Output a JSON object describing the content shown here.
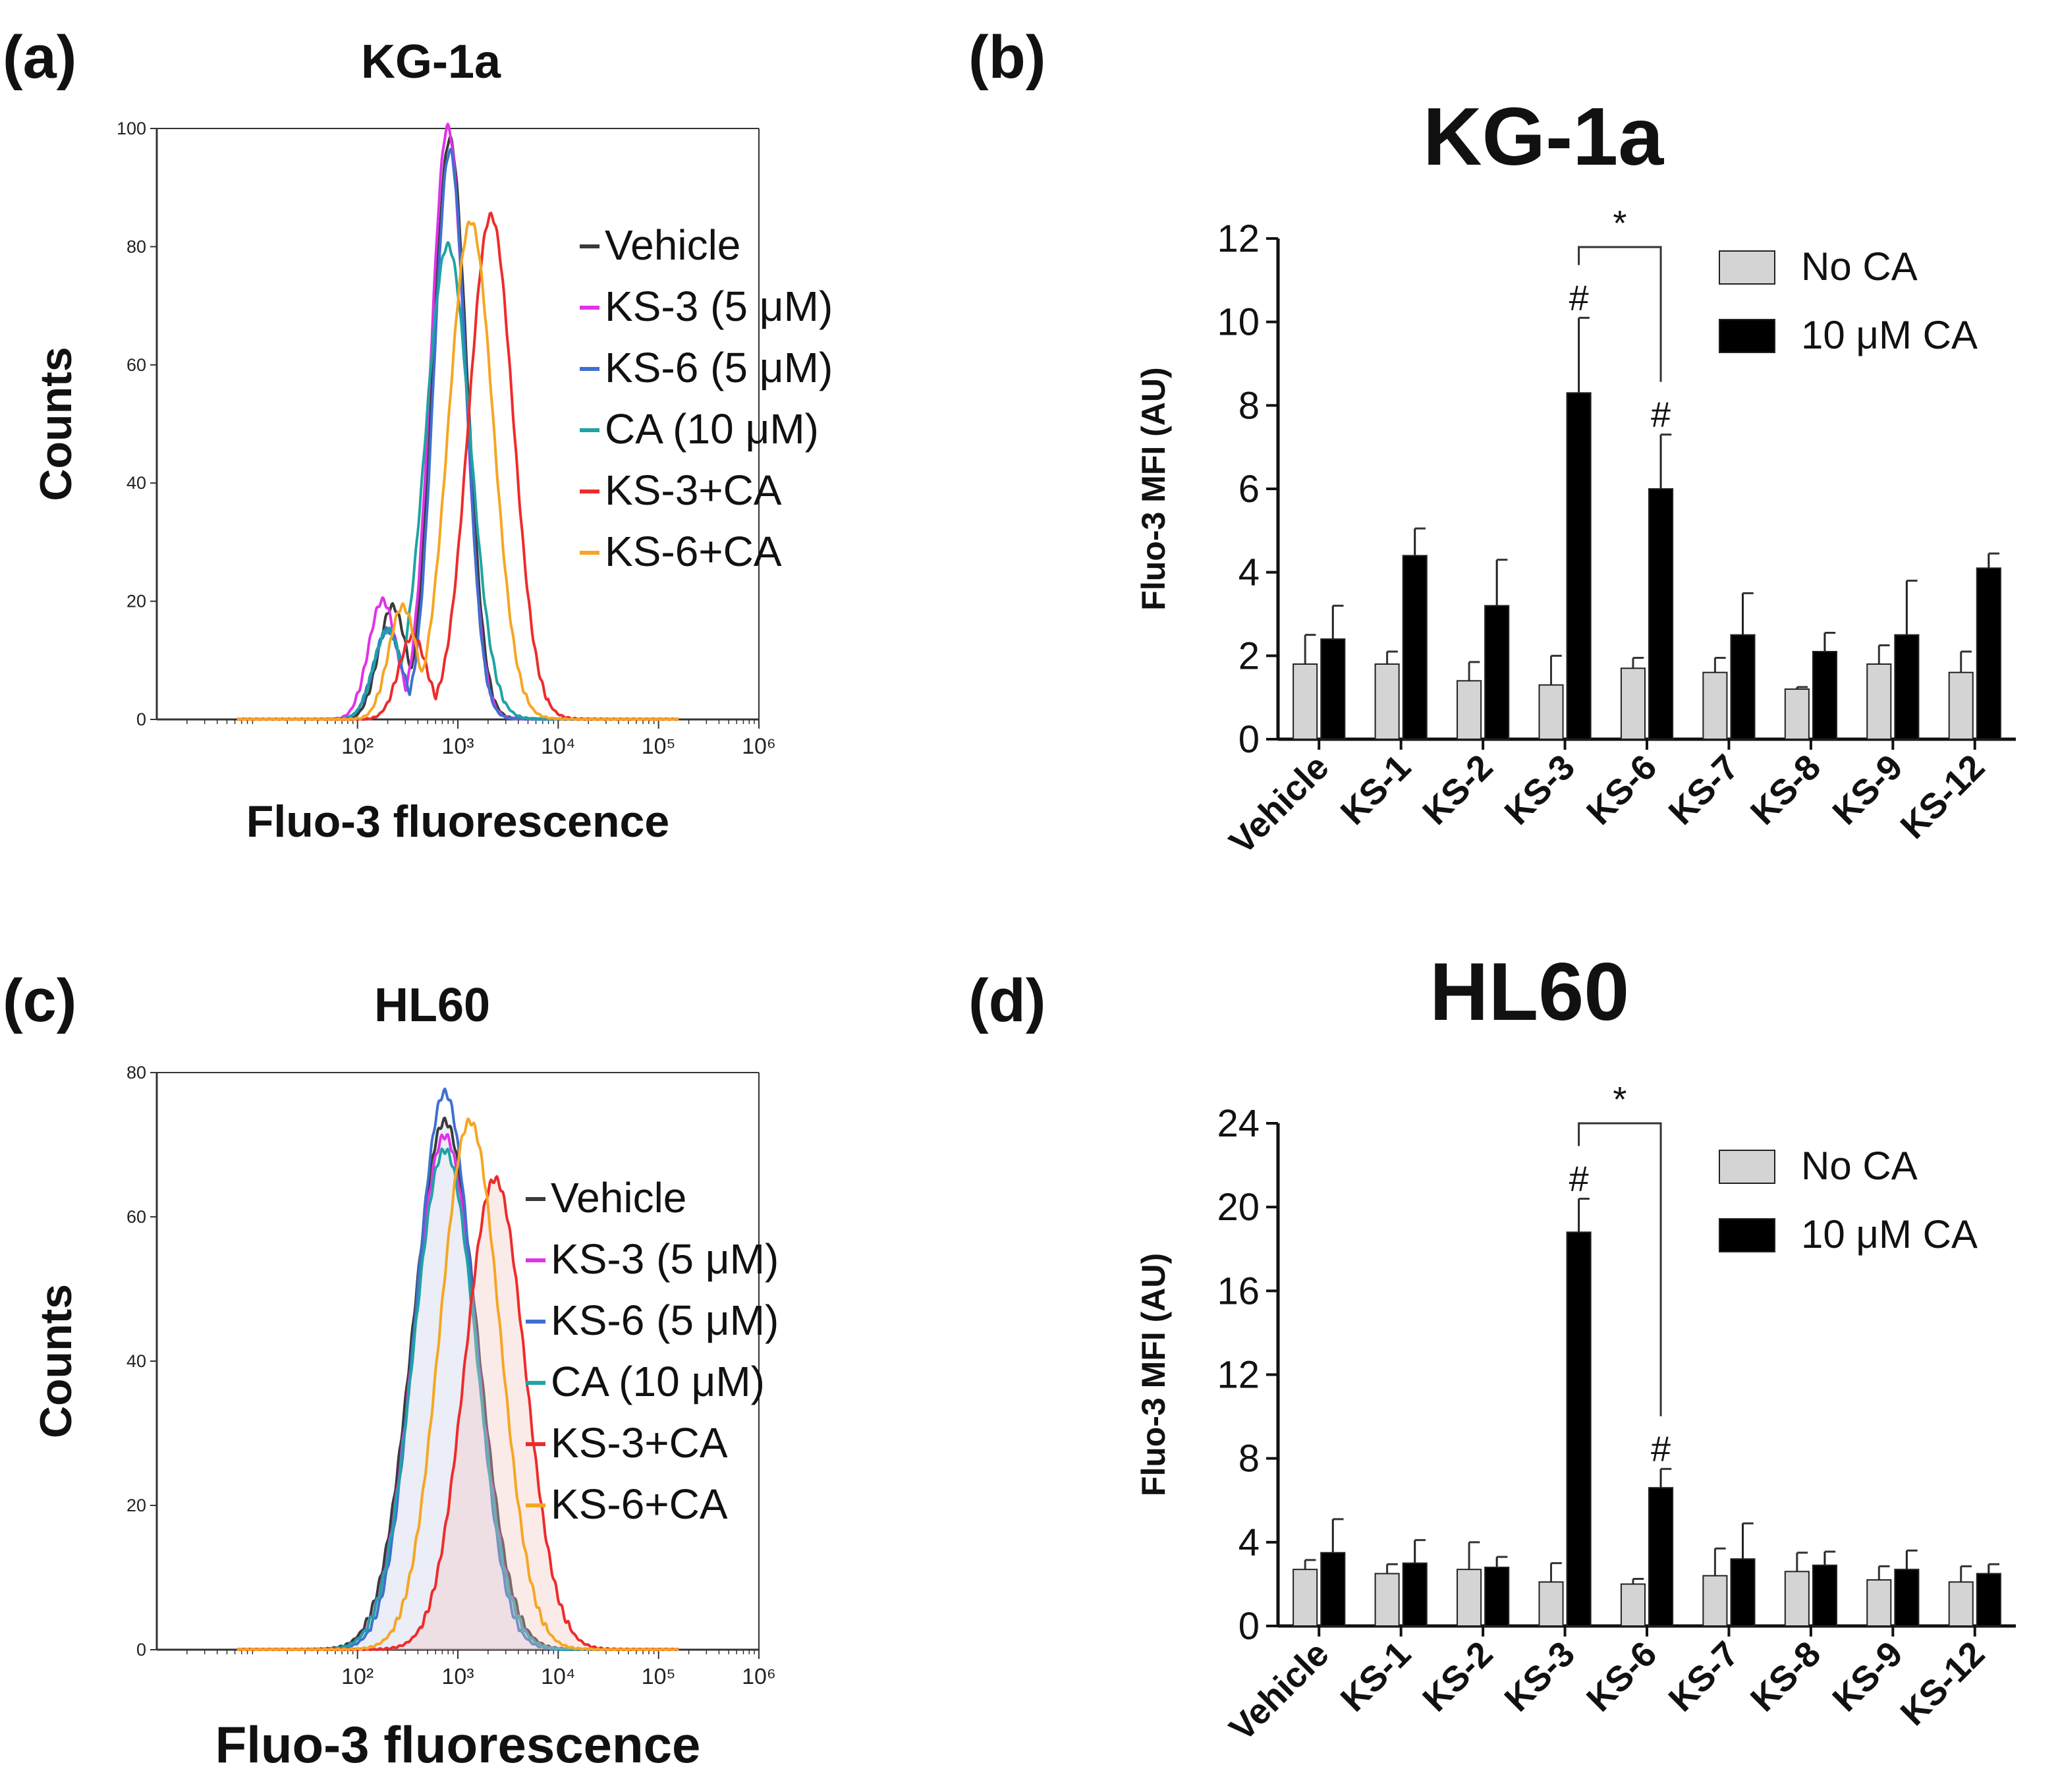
{
  "figure": {
    "panels": [
      {
        "letter": "(a)",
        "title": "KG-1a"
      },
      {
        "letter": "(b)",
        "title": "KG-1a"
      },
      {
        "letter": "(c)",
        "title": "HL60"
      },
      {
        "letter": "(d)",
        "title": "HL60"
      }
    ]
  },
  "chart_data": [
    {
      "panel": "(a)",
      "type": "line",
      "title": "KG-1a",
      "xlabel": "Fluo-3 fluorescence",
      "ylabel": "Counts",
      "xscale": "log",
      "xlim": [
        1,
        1000000
      ],
      "ylim": [
        0,
        100
      ],
      "xticks": [
        "10²",
        "10³",
        "10⁴",
        "10⁵",
        "10⁶"
      ],
      "yticks": [
        "0",
        "20",
        "40",
        "60",
        "80",
        "100"
      ],
      "legend_position": "right",
      "series": [
        {
          "name": "Vehicle",
          "color": "#3a3a3a",
          "peak_log10": 2.92,
          "peak": 98,
          "width": 0.17,
          "shoulder": 19,
          "shoulder_log10": 2.35
        },
        {
          "name": "KS-3 (5 μM)",
          "color": "#e032e8",
          "peak_log10": 2.9,
          "peak": 100,
          "width": 0.17,
          "shoulder": 20,
          "shoulder_log10": 2.25
        },
        {
          "name": "KS-6 (5 μM)",
          "color": "#3f6fd0",
          "peak_log10": 2.92,
          "peak": 96,
          "width": 0.16,
          "shoulder": 15,
          "shoulder_log10": 2.3
        },
        {
          "name": "CA (10 μM)",
          "color": "#1fa3a3",
          "peak_log10": 2.9,
          "peak": 80,
          "width": 0.22,
          "shoulder": 15,
          "shoulder_log10": 2.3
        },
        {
          "name": "KS-3+CA",
          "color": "#ee2b2b",
          "peak_log10": 3.33,
          "peak": 85,
          "width": 0.22,
          "shoulder": 14,
          "shoulder_log10": 2.55
        },
        {
          "name": "KS-6+CA",
          "color": "#f5a623",
          "peak_log10": 3.13,
          "peak": 84,
          "width": 0.22,
          "shoulder": 19,
          "shoulder_log10": 2.45
        }
      ]
    },
    {
      "panel": "(b)",
      "type": "bar",
      "title": "KG-1a",
      "ylabel": "Fluo-3 MFI (AU)",
      "ylim": [
        0,
        12
      ],
      "yticks": [
        0,
        2,
        4,
        6,
        8,
        10,
        12
      ],
      "categories": [
        "Vehicle",
        "KS-1",
        "KS-2",
        "KS-3",
        "KS-6",
        "KS-7",
        "KS-8",
        "KS-9",
        "KS-12"
      ],
      "series": [
        {
          "name": "No CA",
          "color": "#d4d4d4",
          "values": [
            1.8,
            1.8,
            1.4,
            1.3,
            1.7,
            1.6,
            1.2,
            1.8,
            1.6
          ],
          "errors": [
            0.7,
            0.3,
            0.45,
            0.7,
            0.25,
            0.35,
            0.05,
            0.45,
            0.5
          ]
        },
        {
          "name": "10 μM CA",
          "color": "#000000",
          "values": [
            2.4,
            4.4,
            3.2,
            8.3,
            6.0,
            2.5,
            2.1,
            2.5,
            4.1
          ],
          "errors": [
            0.8,
            0.65,
            1.1,
            1.8,
            1.3,
            1.0,
            0.45,
            1.3,
            0.35
          ]
        }
      ],
      "annotations": [
        {
          "category": "KS-3",
          "text": "#"
        },
        {
          "category": "KS-6",
          "text": "#"
        },
        {
          "between": [
            "KS-3",
            "KS-6"
          ],
          "text": "*"
        }
      ],
      "legend_position": "top-right"
    },
    {
      "panel": "(c)",
      "type": "line",
      "title": "HL60",
      "xlabel": "Fluo-3 fluorescence",
      "ylabel": "Counts",
      "xscale": "log",
      "xlim": [
        1,
        1000000
      ],
      "ylim": [
        0,
        80
      ],
      "xticks": [
        "10²",
        "10³",
        "10⁴",
        "10⁵",
        "10⁶"
      ],
      "yticks": [
        "0",
        "20",
        "40",
        "60",
        "80"
      ],
      "legend_position": "right",
      "series": [
        {
          "name": "Vehicle",
          "color": "#3a3a3a",
          "peak_log10": 2.87,
          "peak": 73,
          "width": 0.32,
          "shoulder": 0,
          "shoulder_log10": 2.5
        },
        {
          "name": "KS-3 (5 μM)",
          "color": "#e032e8",
          "peak_log10": 2.87,
          "peak": 71,
          "width": 0.31,
          "shoulder": 0,
          "shoulder_log10": 2.5
        },
        {
          "name": "KS-6 (5 μM)",
          "color": "#3f6fd0",
          "peak_log10": 2.87,
          "peak": 77,
          "width": 0.29,
          "shoulder": 0,
          "shoulder_log10": 2.5
        },
        {
          "name": "CA (10 μM)",
          "color": "#1fa3a3",
          "peak_log10": 2.87,
          "peak": 69,
          "width": 0.31,
          "shoulder": 0,
          "shoulder_log10": 2.5
        },
        {
          "name": "KS-3+CA",
          "color": "#ee2b2b",
          "peak_log10": 3.37,
          "peak": 65,
          "width": 0.3,
          "shoulder": 0,
          "shoulder_log10": 2.8
        },
        {
          "name": "KS-6+CA",
          "color": "#f5a623",
          "peak_log10": 3.12,
          "peak": 73,
          "width": 0.3,
          "shoulder": 0,
          "shoulder_log10": 2.7
        }
      ]
    },
    {
      "panel": "(d)",
      "type": "bar",
      "title": "HL60",
      "ylabel": "Fluo-3 MFI (AU)",
      "ylim": [
        0,
        24
      ],
      "yticks": [
        0,
        4,
        8,
        12,
        16,
        20,
        24
      ],
      "categories": [
        "Vehicle",
        "KS-1",
        "KS-2",
        "KS-3",
        "KS-6",
        "KS-7",
        "KS-8",
        "KS-9",
        "KS-12"
      ],
      "series": [
        {
          "name": "No CA",
          "color": "#d4d4d4",
          "values": [
            2.7,
            2.5,
            2.7,
            2.1,
            2.0,
            2.4,
            2.6,
            2.2,
            2.1
          ],
          "errors": [
            0.45,
            0.45,
            1.3,
            0.9,
            0.25,
            1.3,
            0.9,
            0.65,
            0.75
          ]
        },
        {
          "name": "10 μM CA",
          "color": "#000000",
          "values": [
            3.5,
            3.0,
            2.8,
            18.8,
            6.6,
            3.2,
            2.9,
            2.7,
            2.5
          ],
          "errors": [
            1.6,
            1.1,
            0.5,
            1.6,
            0.9,
            1.7,
            0.65,
            0.9,
            0.45
          ]
        }
      ],
      "annotations": [
        {
          "category": "KS-3",
          "text": "#"
        },
        {
          "category": "KS-6",
          "text": "#"
        },
        {
          "between": [
            "KS-3",
            "KS-6"
          ],
          "text": "*"
        }
      ],
      "legend_position": "top-right"
    }
  ]
}
